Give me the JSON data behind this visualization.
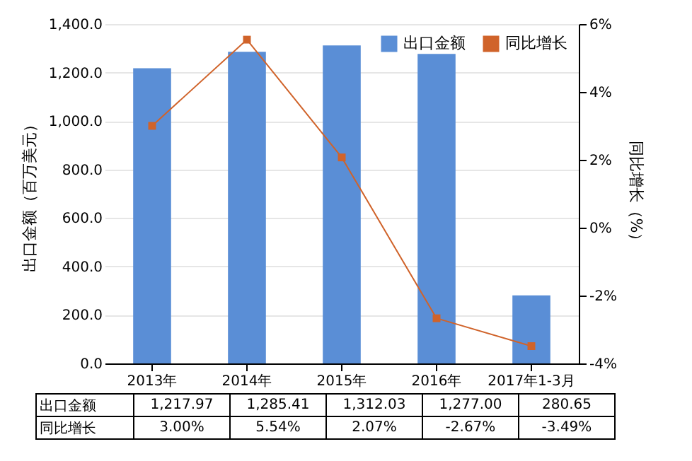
{
  "chart_data": {
    "type": "bar",
    "categories": [
      "2013年",
      "2014年",
      "2015年",
      "2016年",
      "2017年1-3月"
    ],
    "ylabel": "出口金额（百万美元）",
    "y2label": "同比增长（%）",
    "series": [
      {
        "name": "出口金额",
        "color": "#5a8ed6",
        "values": [
          1217.97,
          1285.41,
          1312.03,
          1277.0,
          280.65
        ],
        "value_labels": [
          "1,217.97",
          "1,285.41",
          "1,312.03",
          "1,277.00",
          "280.65"
        ]
      },
      {
        "name": "同比增长",
        "type": "line",
        "axis": "y2",
        "color": "#d0632a",
        "marker": "square",
        "values": [
          3.0,
          5.54,
          2.07,
          -2.67,
          -3.49
        ],
        "value_labels": [
          "3.00%",
          "5.54%",
          "2.07%",
          "-2.67%",
          "-3.49%"
        ]
      }
    ],
    "ylim": [
      0,
      1400
    ],
    "yticks": [
      {
        "value": 0,
        "label": "0.0"
      },
      {
        "value": 200,
        "label": "200.0"
      },
      {
        "value": 400,
        "label": "400.0"
      },
      {
        "value": 600,
        "label": "600.0"
      },
      {
        "value": 800,
        "label": "800.0"
      },
      {
        "value": 1000,
        "label": "1,000.0"
      },
      {
        "value": 1200,
        "label": "1,200.0"
      },
      {
        "value": 1400,
        "label": "1,400.0"
      }
    ],
    "y2lim": [
      -4,
      6
    ],
    "y2ticks": [
      {
        "value": -4,
        "label": "-4%"
      },
      {
        "value": -2,
        "label": "-2%"
      },
      {
        "value": 0,
        "label": "0%"
      },
      {
        "value": 2,
        "label": "2%"
      },
      {
        "value": 4,
        "label": "4%"
      },
      {
        "value": 6,
        "label": "6%"
      }
    ],
    "grid": "y",
    "legend": "top right"
  }
}
